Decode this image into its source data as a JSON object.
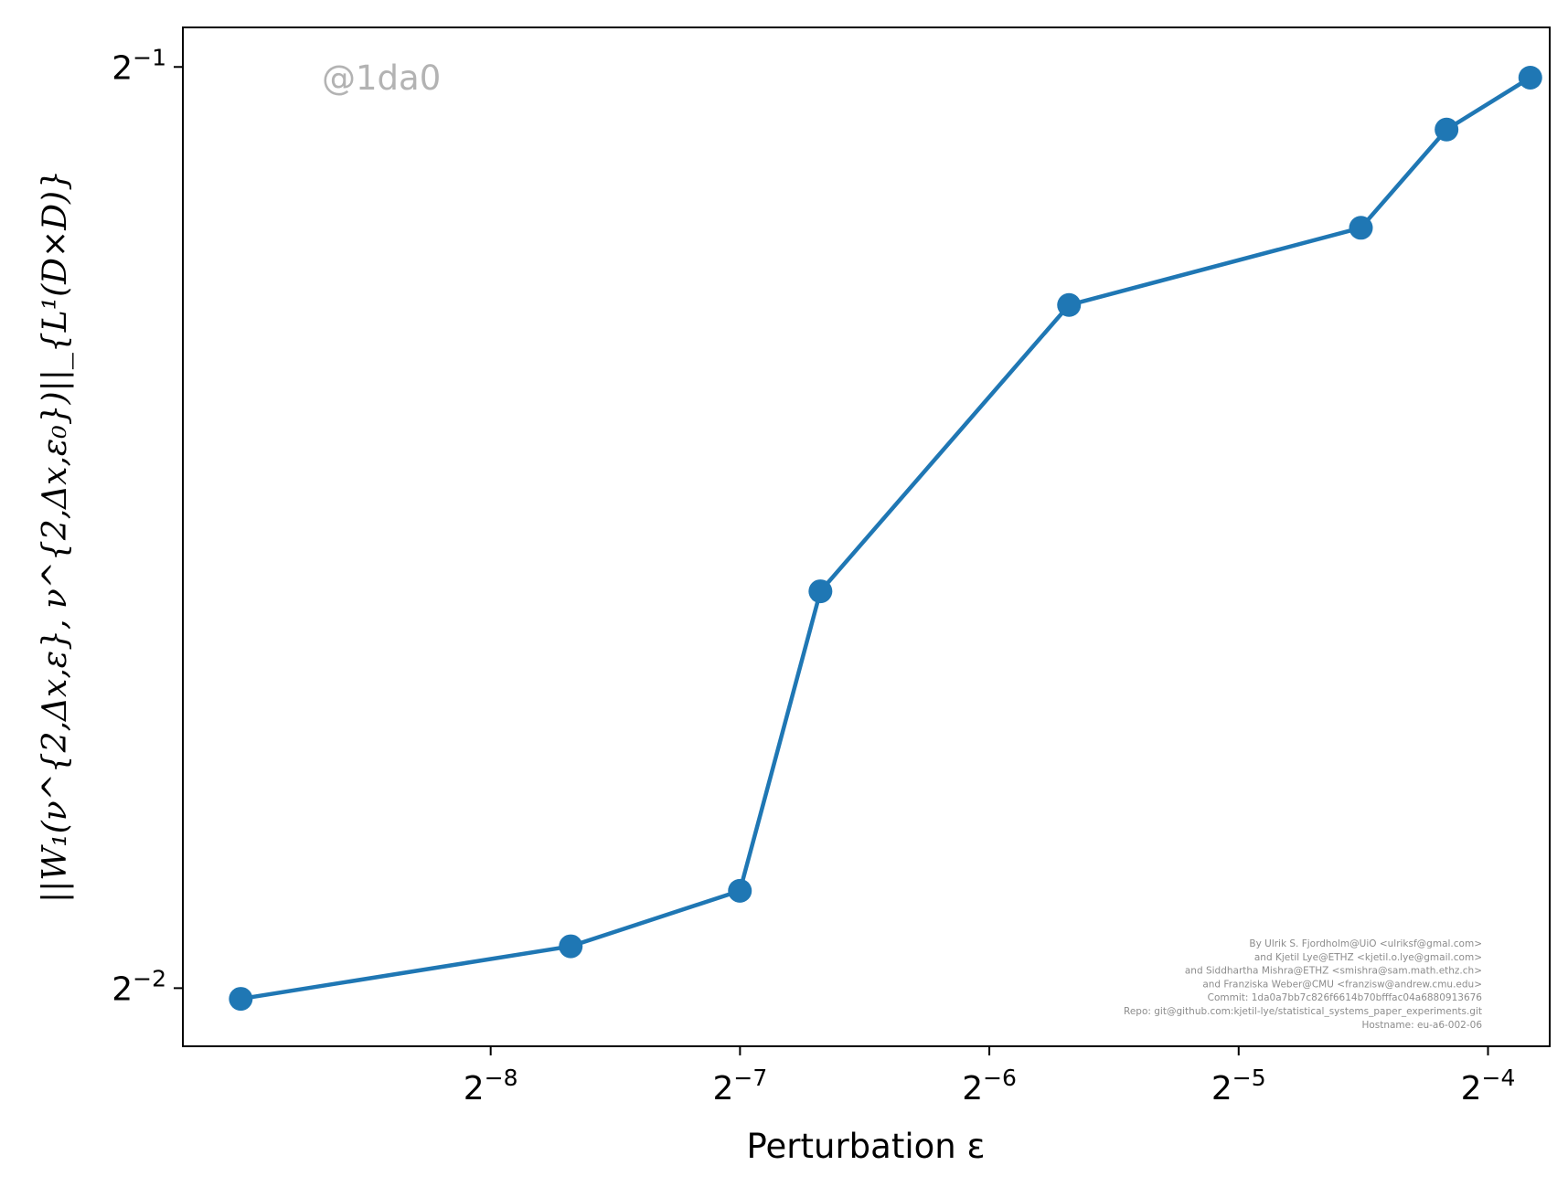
{
  "watermark": "@1da0",
  "credits": [
    "By Ulrik S. Fjordholm@UiO <ulriksf@gmal.com>",
    "and Kjetil Lye@ETHZ <kjetil.o.lye@gmail.com>",
    "and Siddhartha Mishra@ETHZ <smishra@sam.math.ethz.ch>",
    "and Franziska Weber@CMU <franzisw@andrew.cmu.edu>",
    "Commit: 1da0a7bb7c826f6614b70bfffac04a6880913676",
    "Repo: git@github.com:kjetil-lye/statistical_systems_paper_experiments.git",
    "Hostname: eu-a6-002-06"
  ],
  "colors": {
    "series": "#1f77b4",
    "watermark": "#b3b3b3",
    "credits": "#8c8c8c"
  },
  "chart_data": {
    "type": "line",
    "title": "",
    "xlabel": "Perturbation ε",
    "ylabel": "||W₁(ν^{2,Δx,ε}, ν^{2,Δx,ε₀})||_{L¹(D×D)}",
    "xscale": "log2",
    "yscale": "log2",
    "xlim": [
      0.00166,
      0.0742
    ],
    "ylim": [
      0.2393,
      0.5151
    ],
    "grid": false,
    "xticks": [
      {
        "value": 0.00390625,
        "base": "2",
        "exp": "−8"
      },
      {
        "value": 0.0078125,
        "base": "2",
        "exp": "−7"
      },
      {
        "value": 0.015625,
        "base": "2",
        "exp": "−6"
      },
      {
        "value": 0.03125,
        "base": "2",
        "exp": "−5"
      },
      {
        "value": 0.0625,
        "base": "2",
        "exp": "−4"
      }
    ],
    "yticks": [
      {
        "value": 0.25,
        "base": "2",
        "exp": "−2"
      },
      {
        "value": 0.5,
        "base": "2",
        "exp": "−1"
      }
    ],
    "series": [
      {
        "marker": "circle",
        "x": [
          0.00195,
          0.00488,
          0.00781,
          0.00977,
          0.0195,
          0.0439,
          0.0557,
          0.0703
        ],
        "y": [
          0.248,
          0.258,
          0.269,
          0.337,
          0.418,
          0.443,
          0.477,
          0.496
        ]
      }
    ]
  }
}
